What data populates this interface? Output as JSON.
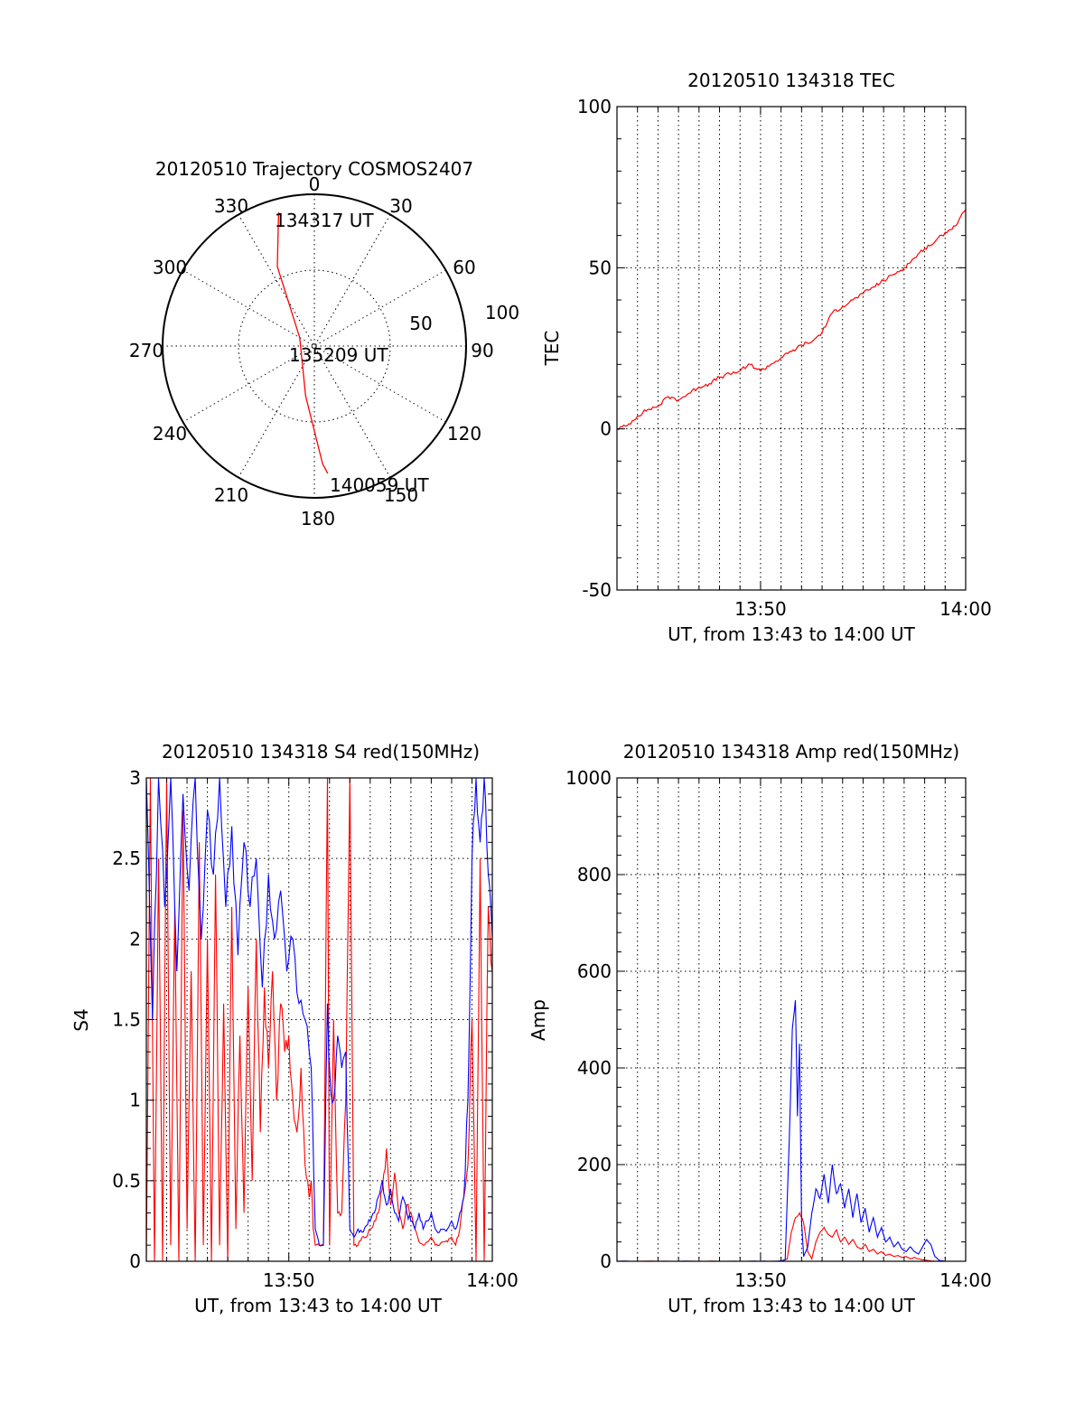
{
  "colors": {
    "red": "#ff0000",
    "blue": "#0000ff",
    "axis": "#000000"
  },
  "chart_data": [
    {
      "id": "trajectory",
      "type": "polar",
      "title": "20120510 Trajectory COSMOS2407",
      "angle_labels": [
        "0",
        "30",
        "60",
        "90",
        "120",
        "150",
        "180",
        "210",
        "240",
        "270",
        "300",
        "330"
      ],
      "radial_ticks": [
        50,
        100
      ],
      "radial_labels": [
        "50",
        "100"
      ],
      "rlim": [
        0,
        90
      ],
      "path": [
        {
          "az": 345,
          "el": 8
        },
        {
          "az": 335,
          "el": 38
        },
        {
          "az": 300,
          "el": 80
        },
        {
          "az": 190,
          "el": 60
        },
        {
          "az": 176,
          "el": 20
        },
        {
          "az": 174,
          "el": 14
        }
      ],
      "annotations": [
        {
          "text": "134317 UT",
          "az": 345,
          "el": 8
        },
        {
          "text": "135209 UT",
          "az": 105,
          "el": 87
        },
        {
          "text": "140059 UT",
          "az": 170,
          "el": 14
        }
      ]
    },
    {
      "id": "tec",
      "type": "line",
      "title": "20120510 134318 TEC",
      "xlabel": "UT, from 13:43 to 14:00 UT",
      "ylabel": "TEC",
      "xlim": [
        0,
        17
      ],
      "x_ticks": [
        7,
        17
      ],
      "x_tick_labels": [
        "13:50",
        "14:00"
      ],
      "ylim": [
        -50,
        100
      ],
      "y_ticks": [
        -50,
        0,
        50,
        100
      ],
      "y_tick_labels": [
        "-50",
        "0",
        "50",
        "100"
      ],
      "series": [
        {
          "color": "red",
          "x": [
            0,
            0.5,
            1,
            1.5,
            2,
            2.5,
            3,
            3.5,
            4,
            4.5,
            5,
            5.5,
            6,
            6.5,
            7,
            7.5,
            8,
            8.5,
            9,
            9.5,
            10,
            10.5,
            11,
            11.5,
            12,
            12.5,
            13,
            13.5,
            14,
            14.5,
            15,
            15.5,
            16,
            16.5,
            17
          ],
          "y": [
            0,
            1,
            4,
            6,
            7,
            10,
            9,
            11,
            13,
            14,
            16,
            17,
            18,
            20,
            18,
            20,
            22,
            24,
            26,
            27,
            30,
            36,
            38,
            40,
            42,
            44,
            46,
            48,
            50,
            53,
            56,
            58,
            61,
            63,
            68
          ]
        }
      ]
    },
    {
      "id": "s4",
      "type": "line",
      "title": "20120510 134318 S4 red(150MHz)",
      "xlabel": "UT, from 13:43 to 14:00 UT",
      "ylabel": "S4",
      "xlim": [
        0,
        17
      ],
      "x_ticks": [
        7,
        17
      ],
      "x_tick_labels": [
        "13:50",
        "14:00"
      ],
      "ylim": [
        0,
        3
      ],
      "y_ticks": [
        0,
        0.5,
        1,
        1.5,
        2,
        2.5,
        3
      ],
      "y_tick_labels": [
        "0",
        "0.5",
        "1",
        "1.5",
        "2",
        "2.5",
        "3"
      ],
      "series": [
        {
          "color": "red",
          "x": [
            0,
            0.2,
            0.4,
            0.6,
            0.8,
            1,
            1.2,
            1.4,
            1.6,
            1.8,
            2,
            2.2,
            2.4,
            2.6,
            2.8,
            3,
            3.2,
            3.4,
            3.6,
            3.8,
            4,
            4.2,
            4.4,
            4.6,
            4.8,
            5,
            5.2,
            5.4,
            5.6,
            5.8,
            6,
            6.2,
            6.4,
            6.6,
            6.8,
            7,
            7.2,
            7.4,
            7.6,
            7.8,
            8,
            8.1,
            8.2,
            8.3,
            8.5,
            8.7,
            8.9,
            9.0,
            9.2,
            9.4,
            9.6,
            9.8,
            10,
            10.2,
            10.4,
            10.6,
            10.8,
            11,
            11.2,
            11.4,
            11.6,
            11.8,
            12,
            12.2,
            12.4,
            12.6,
            12.8,
            13,
            13.2,
            13.4,
            13.6,
            13.8,
            14,
            14.2,
            14.4,
            14.6,
            14.8,
            15,
            15.2,
            15.4,
            15.6,
            15.8,
            16,
            16.2,
            16.4,
            16.6,
            16.8,
            17
          ],
          "y": [
            0,
            3,
            0,
            2.5,
            0,
            3,
            0.1,
            2.2,
            0,
            2.8,
            0.2,
            1.8,
            0,
            2.6,
            0.1,
            2.0,
            0,
            2.4,
            0.1,
            1.6,
            0,
            2.2,
            0.2,
            1.4,
            0.3,
            1.7,
            0.5,
            2.0,
            0.8,
            1.7,
            1.2,
            1.8,
            1.0,
            1.6,
            1.3,
            1.4,
            1.0,
            0.8,
            1.2,
            0.6,
            0.4,
            0.5,
            0.2,
            0.1,
            0.1,
            0.1,
            3.0,
            0.1,
            1.5,
            0.3,
            0.3,
            1.0,
            3.0,
            0.1,
            0.1,
            0.15,
            0.15,
            0.2,
            0.25,
            0.3,
            0.45,
            0.7,
            0.35,
            0.55,
            0.3,
            0.2,
            0.35,
            0.3,
            0.2,
            0.12,
            0.1,
            0.12,
            0.15,
            0.1,
            0.1,
            0.12,
            0.12,
            0.15,
            0.1,
            0.2,
            0.4,
            0.6,
            1.5,
            0,
            2.5,
            0,
            2.2,
            1.8
          ]
        },
        {
          "color": "blue",
          "x": [
            0,
            0.3,
            0.6,
            0.9,
            1.2,
            1.5,
            1.8,
            2.1,
            2.4,
            2.7,
            3,
            3.3,
            3.6,
            3.9,
            4.2,
            4.5,
            4.8,
            5.1,
            5.4,
            5.7,
            6,
            6.3,
            6.6,
            6.9,
            7.2,
            7.5,
            7.8,
            8.1,
            8.3,
            8.5,
            8.7,
            8.9,
            9.0,
            9.2,
            9.4,
            9.6,
            9.8,
            10,
            10.2,
            10.4,
            10.6,
            10.8,
            11,
            11.2,
            11.4,
            11.6,
            11.8,
            12,
            12.2,
            12.4,
            12.6,
            12.8,
            13,
            13.2,
            13.4,
            13.6,
            13.8,
            14,
            14.2,
            14.4,
            14.6,
            14.8,
            15,
            15.2,
            15.4,
            15.6,
            15.8,
            16,
            16.2,
            16.4,
            16.6,
            16.8,
            17
          ],
          "y": [
            3,
            1.5,
            3,
            2.2,
            3,
            1.8,
            2.9,
            2.3,
            3,
            2.0,
            2.8,
            2.4,
            3,
            2.2,
            2.7,
            1.9,
            2.6,
            2.2,
            2.5,
            1.7,
            2.4,
            2.0,
            2.3,
            1.8,
            2.0,
            1.6,
            1.5,
            1.2,
            0.2,
            0.1,
            0.1,
            1.6,
            1.2,
            1.0,
            1.4,
            1.2,
            1.3,
            0.2,
            0.15,
            0.2,
            0.18,
            0.22,
            0.25,
            0.3,
            0.4,
            0.5,
            0.35,
            0.45,
            0.3,
            0.25,
            0.4,
            0.3,
            0.25,
            0.2,
            0.3,
            0.2,
            0.25,
            0.3,
            0.2,
            0.18,
            0.2,
            0.2,
            0.25,
            0.2,
            0.3,
            0.4,
            1.0,
            2.5,
            3,
            2.6,
            3,
            2.4,
            2.0
          ]
        }
      ]
    },
    {
      "id": "amp",
      "type": "line",
      "title": "20120510 134318 Amp red(150MHz)",
      "xlabel": "UT, from 13:43 to 14:00 UT",
      "ylabel": "Amp",
      "xlim": [
        0,
        17
      ],
      "x_ticks": [
        7,
        17
      ],
      "x_tick_labels": [
        "13:50",
        "14:00"
      ],
      "ylim": [
        0,
        1000
      ],
      "y_ticks": [
        0,
        200,
        400,
        600,
        800,
        1000
      ],
      "y_tick_labels": [
        "0",
        "200",
        "400",
        "600",
        "800",
        "1000"
      ],
      "series": [
        {
          "color": "red",
          "x": [
            0,
            1,
            2,
            3,
            4,
            5,
            6,
            7,
            8,
            8.3,
            8.5,
            8.7,
            8.9,
            9.1,
            9.3,
            9.5,
            9.7,
            9.9,
            10.1,
            10.3,
            10.5,
            10.7,
            10.9,
            11.1,
            11.3,
            11.5,
            11.7,
            11.9,
            12.1,
            12.3,
            12.5,
            12.7,
            12.9,
            13.1,
            13.3,
            13.5,
            13.7,
            13.9,
            14.1,
            14.3,
            14.5,
            14.7,
            14.9,
            15.1,
            15.3,
            15.5,
            15.7,
            16,
            17
          ],
          "y": [
            0,
            0,
            0,
            0,
            0,
            0,
            0,
            0,
            0,
            5,
            60,
            90,
            100,
            80,
            20,
            5,
            40,
            60,
            70,
            55,
            50,
            65,
            40,
            50,
            35,
            45,
            30,
            25,
            35,
            20,
            25,
            15,
            20,
            12,
            15,
            10,
            12,
            8,
            10,
            5,
            8,
            5,
            3,
            2,
            1,
            0,
            0,
            0,
            0
          ]
        },
        {
          "color": "blue",
          "x": [
            0,
            1,
            2,
            3,
            4,
            5,
            6,
            7,
            7.5,
            8,
            8.2,
            8.4,
            8.55,
            8.7,
            8.8,
            8.9,
            9.0,
            9.1,
            9.3,
            9.5,
            9.7,
            9.9,
            10.1,
            10.3,
            10.5,
            10.7,
            10.9,
            11.1,
            11.3,
            11.5,
            11.7,
            11.9,
            12.1,
            12.3,
            12.5,
            12.7,
            12.9,
            13.1,
            13.3,
            13.5,
            13.7,
            13.9,
            14.1,
            14.3,
            14.5,
            14.7,
            14.9,
            15.1,
            15.3,
            15.5,
            15.7,
            16,
            17
          ],
          "y": [
            0,
            0,
            0,
            0,
            0,
            0,
            0,
            0,
            0,
            1,
            3,
            250,
            480,
            540,
            300,
            450,
            80,
            10,
            30,
            100,
            150,
            130,
            180,
            120,
            200,
            140,
            160,
            110,
            150,
            90,
            140,
            80,
            110,
            60,
            90,
            50,
            70,
            40,
            50,
            30,
            40,
            25,
            20,
            30,
            20,
            15,
            30,
            45,
            35,
            10,
            2,
            0,
            0
          ]
        }
      ]
    }
  ]
}
